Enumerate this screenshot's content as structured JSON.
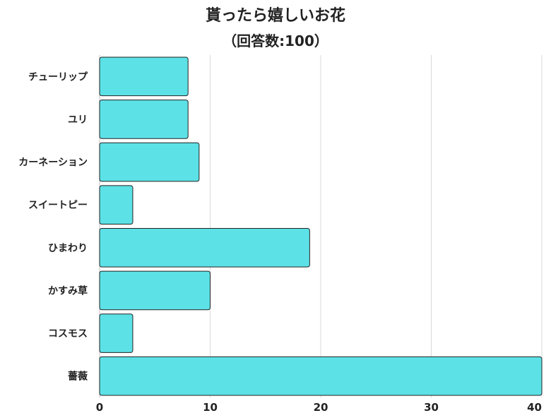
{
  "chart_data": {
    "type": "bar",
    "orientation": "horizontal",
    "title": "貰ったら嬉しいお花",
    "subtitle": "（回答数:100）",
    "categories": [
      "チューリップ",
      "ユリ",
      "カーネーション",
      "スイートピー",
      "ひまわり",
      "かすみ草",
      "コスモス",
      "薔薇"
    ],
    "values": [
      8,
      8,
      9,
      3,
      19,
      10,
      3,
      40
    ],
    "xlim": [
      0,
      40
    ],
    "xticks": [
      "0",
      "10",
      "20",
      "30",
      "40"
    ],
    "grid": "vertical",
    "bar_color": "#5ce1e6",
    "legend": "none"
  }
}
